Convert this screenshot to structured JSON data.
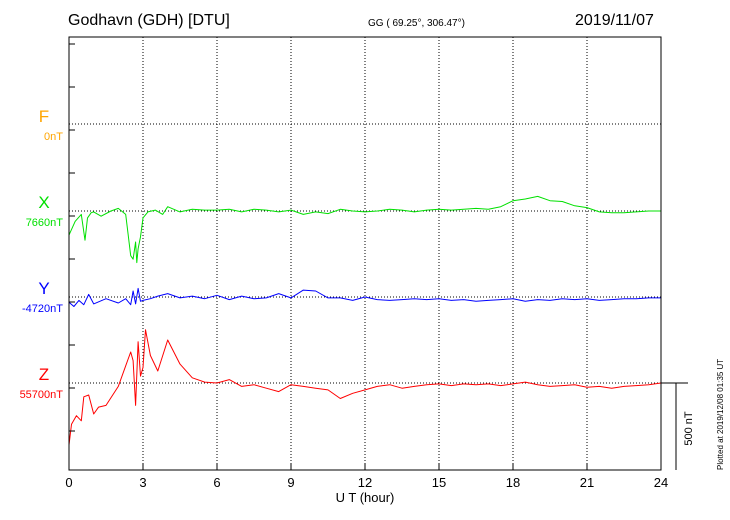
{
  "header": {
    "station": "Godhavn (GDH)  [DTU]",
    "coords": "GG ( 69.25°, 306.47°)",
    "date": "2019/11/07"
  },
  "footer": {
    "plotted": "Plotted at 2019/12/08 01:35 UT"
  },
  "chart_data": {
    "type": "line",
    "xlabel": "U T (hour)",
    "xlim": [
      0,
      24
    ],
    "xticks": [
      "0",
      "3",
      "6",
      "9",
      "12",
      "15",
      "18",
      "21",
      "24"
    ],
    "scale_label": "500 nT",
    "grid": true,
    "series": [
      {
        "name": "F",
        "baseline_label": "0nT",
        "color": "#ffa500",
        "x": [],
        "y": []
      },
      {
        "name": "X",
        "baseline_label": "7660nT",
        "color": "#00e000",
        "x": [
          0,
          0.25,
          0.5,
          0.65,
          0.75,
          0.9,
          1,
          1.3,
          1.7,
          2,
          2.3,
          2.5,
          2.6,
          2.7,
          2.75,
          2.8,
          2.9,
          3,
          3.2,
          3.5,
          3.8,
          4,
          4.5,
          5,
          5.5,
          6,
          6.5,
          7,
          7.5,
          8,
          8.5,
          9,
          9.5,
          10,
          10.5,
          11,
          11.5,
          12,
          12.5,
          13,
          13.5,
          14,
          14.5,
          15,
          15.5,
          16,
          16.5,
          17,
          17.5,
          18,
          18.5,
          19,
          19.5,
          20,
          20.5,
          21,
          21.5,
          22,
          22.5,
          23,
          23.5,
          24
        ],
        "y": [
          -140,
          -60,
          -20,
          -170,
          -40,
          -10,
          -5,
          -30,
          0,
          15,
          -20,
          -260,
          -280,
          -180,
          -300,
          -220,
          -150,
          -40,
          -5,
          5,
          -20,
          25,
          -5,
          10,
          5,
          5,
          10,
          -5,
          10,
          5,
          -5,
          5,
          -20,
          -5,
          -15,
          10,
          0,
          -5,
          0,
          10,
          5,
          -5,
          5,
          10,
          5,
          10,
          15,
          10,
          25,
          60,
          70,
          85,
          60,
          55,
          30,
          20,
          -5,
          -10,
          -10,
          -5,
          0,
          0
        ]
      },
      {
        "name": "Y",
        "baseline_label": "-4720nT",
        "color": "#0000ff",
        "x": [
          0,
          0.2,
          0.4,
          0.6,
          0.8,
          1,
          1.5,
          2,
          2.3,
          2.5,
          2.6,
          2.7,
          2.8,
          2.9,
          3,
          3.3,
          3.6,
          4,
          4.5,
          5,
          5.5,
          6,
          6.5,
          7,
          7.5,
          8,
          8.5,
          9,
          9.5,
          10,
          10.5,
          11,
          11.5,
          12,
          12.5,
          13,
          13.5,
          14,
          14.5,
          15,
          15.5,
          16,
          16.5,
          17,
          17.5,
          18,
          18.5,
          19,
          19.5,
          20,
          20.5,
          21,
          21.5,
          22,
          22.5,
          23,
          23.5,
          24
        ],
        "y": [
          -30,
          -55,
          -20,
          -45,
          15,
          -40,
          -10,
          -35,
          -10,
          -45,
          35,
          -40,
          50,
          -25,
          -20,
          -10,
          5,
          20,
          -5,
          5,
          -10,
          10,
          -15,
          5,
          -10,
          -5,
          20,
          -5,
          40,
          35,
          -5,
          -5,
          -20,
          0,
          -15,
          -20,
          -15,
          -10,
          -15,
          -10,
          -20,
          -15,
          -25,
          -20,
          -15,
          -10,
          -25,
          -15,
          -20,
          -10,
          -15,
          -10,
          -20,
          -15,
          -10,
          -10,
          -5,
          -5
        ]
      },
      {
        "name": "Z",
        "baseline_label": "55700nT",
        "color": "#ff0000",
        "x": [
          0,
          0.1,
          0.3,
          0.5,
          0.6,
          0.8,
          1,
          1.2,
          1.5,
          2,
          2.3,
          2.5,
          2.6,
          2.7,
          2.8,
          2.9,
          3,
          3.1,
          3.3,
          3.6,
          4,
          4.5,
          5,
          5.5,
          6,
          6.5,
          7,
          7.5,
          8,
          8.5,
          9,
          9.5,
          10,
          10.5,
          11,
          11.5,
          12,
          12.5,
          13,
          13.5,
          14,
          14.5,
          15,
          15.5,
          16,
          16.5,
          17,
          17.5,
          18,
          18.5,
          19,
          19.5,
          20,
          20.5,
          21,
          21.5,
          22,
          22.5,
          23,
          23.5,
          24
        ],
        "y": [
          -360,
          -240,
          -190,
          -220,
          -80,
          -70,
          -180,
          -140,
          -130,
          -20,
          100,
          180,
          130,
          -130,
          240,
          40,
          90,
          310,
          160,
          70,
          250,
          110,
          30,
          5,
          0,
          20,
          -20,
          -10,
          -30,
          -50,
          -10,
          -20,
          -30,
          -40,
          -90,
          -60,
          -40,
          -20,
          -10,
          -30,
          -20,
          -10,
          -5,
          -15,
          -5,
          -10,
          -5,
          -15,
          -5,
          5,
          -10,
          -20,
          -15,
          -10,
          -25,
          -20,
          -30,
          -20,
          -15,
          -10,
          0
        ]
      }
    ]
  }
}
